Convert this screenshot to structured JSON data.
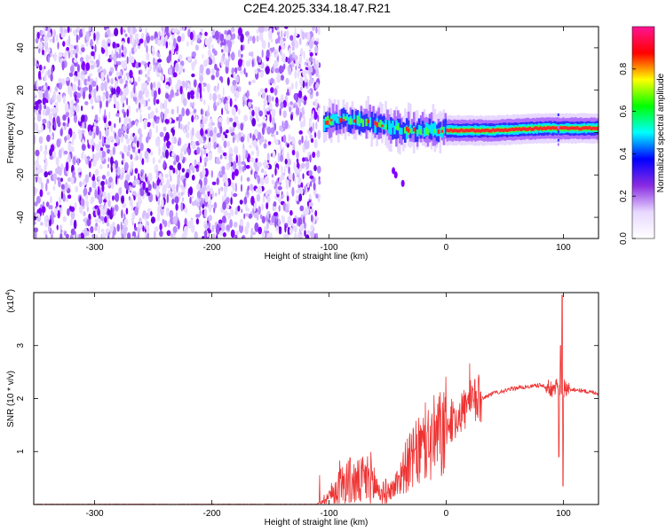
{
  "title": "C2E4.2025.334.18.47.R21",
  "chart_data": [
    {
      "type": "heatmap",
      "name": "spectrogram",
      "xlabel": "Height of straight line (km)",
      "ylabel": "Frequency (Hz)",
      "xlim": [
        -352,
        130
      ],
      "ylim": [
        -50,
        50
      ],
      "xticks": [
        -300,
        -200,
        -100,
        0,
        100
      ],
      "yticks": [
        -40,
        -20,
        0,
        20,
        40
      ],
      "colorbar": {
        "label": "Normalized spectral amplitude",
        "range": [
          0,
          1
        ],
        "ticks": [
          "0.0",
          "0.2",
          "0.4",
          "0.6",
          "0.8"
        ],
        "colors": [
          "#ffffff",
          "#e8d8ff",
          "#8a2be2",
          "#0000ff",
          "#00ffff",
          "#00ff00",
          "#ffff00",
          "#ff0000",
          "#ff1493"
        ]
      },
      "noise_region_x": [
        -352,
        -108
      ],
      "ridge": [
        {
          "x": -105,
          "f": 5
        },
        {
          "x": -90,
          "f": 6
        },
        {
          "x": -70,
          "f": 5
        },
        {
          "x": -50,
          "f": 3
        },
        {
          "x": -30,
          "f": 1
        },
        {
          "x": -10,
          "f": 1
        },
        {
          "x": 10,
          "f": 1
        },
        {
          "x": 40,
          "f": 1
        },
        {
          "x": 80,
          "f": 2
        },
        {
          "x": 100,
          "f": 2
        },
        {
          "x": 130,
          "f": 2
        }
      ]
    },
    {
      "type": "line",
      "name": "snr",
      "xlabel": "Height of straight line (km)",
      "ylabel": "SNR (10 * v/v)",
      "scale_label": "(x10",
      "scale_exp": "4",
      "scale_close": ")",
      "xlim": [
        -352,
        130
      ],
      "ylim": [
        0,
        4
      ],
      "xticks": [
        -300,
        -200,
        -100,
        0,
        100
      ],
      "yticks": [
        1,
        2,
        3
      ],
      "color": "#ee3333",
      "envelope": [
        {
          "x": -352,
          "y": 0.0
        },
        {
          "x": -110,
          "y": 0.0
        },
        {
          "x": -95,
          "y": 0.25
        },
        {
          "x": -85,
          "y": 0.45
        },
        {
          "x": -75,
          "y": 0.4
        },
        {
          "x": -65,
          "y": 0.5
        },
        {
          "x": -55,
          "y": 0.2
        },
        {
          "x": -45,
          "y": 0.3
        },
        {
          "x": -35,
          "y": 0.7
        },
        {
          "x": -25,
          "y": 0.95
        },
        {
          "x": -15,
          "y": 1.15
        },
        {
          "x": -5,
          "y": 1.3
        },
        {
          "x": 5,
          "y": 1.55
        },
        {
          "x": 15,
          "y": 1.8
        },
        {
          "x": 25,
          "y": 1.95
        },
        {
          "x": 40,
          "y": 2.1
        },
        {
          "x": 60,
          "y": 2.2
        },
        {
          "x": 80,
          "y": 2.25
        },
        {
          "x": 90,
          "y": 2.2
        },
        {
          "x": 100,
          "y": 2.2
        },
        {
          "x": 115,
          "y": 2.15
        },
        {
          "x": 130,
          "y": 2.1
        }
      ],
      "spike": {
        "x": 99,
        "ymax": 3.95,
        "ymin": 0.35
      }
    }
  ]
}
